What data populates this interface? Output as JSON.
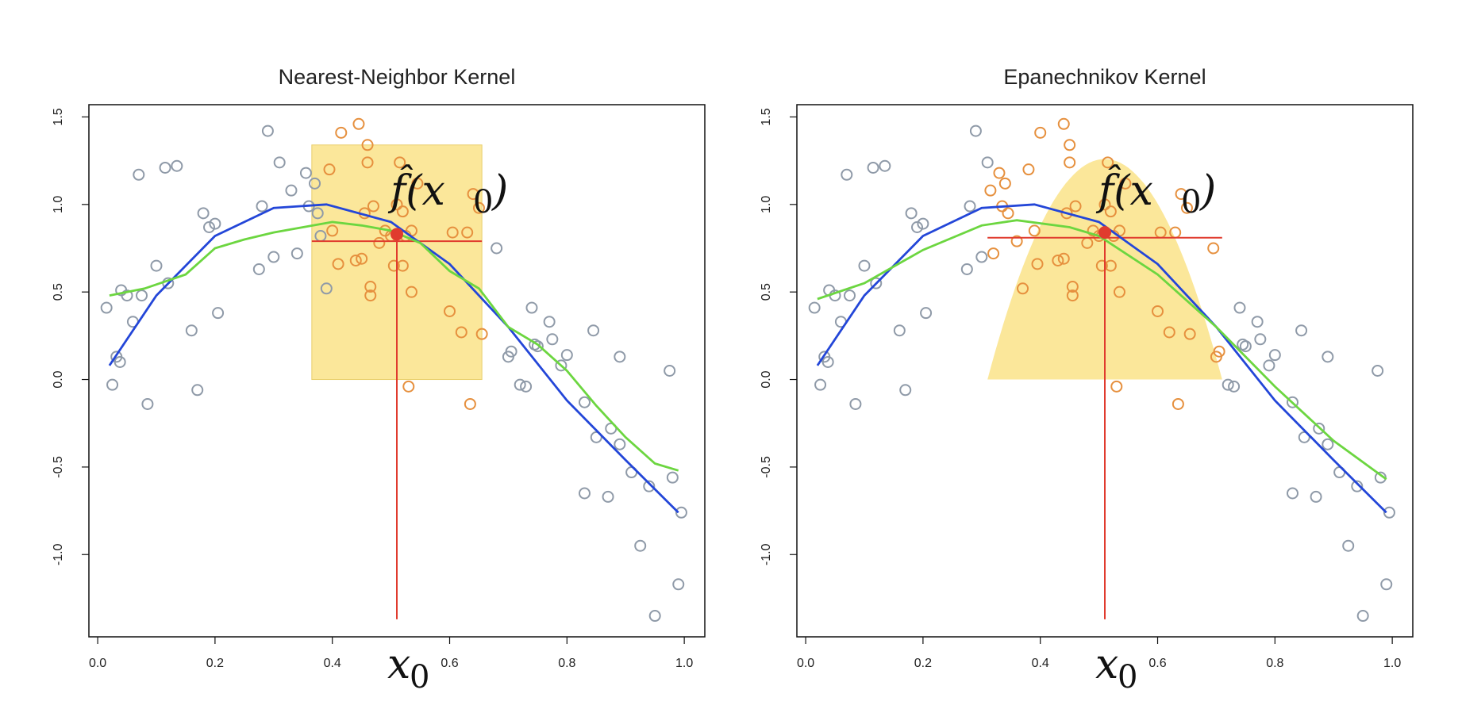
{
  "chart_data": [
    {
      "type": "scatter",
      "title": "Nearest-Neighbor Kernel",
      "kernel": "nearest-neighbor",
      "xlim": [
        -0.015,
        1.035
      ],
      "ylim": [
        -1.47,
        1.57
      ],
      "xticks": [
        0.0,
        0.2,
        0.4,
        0.6,
        0.8,
        1.0
      ],
      "xtick_labels": [
        "0.0",
        "0.2",
        "0.4",
        "0.6",
        "0.8",
        "1.0"
      ],
      "yticks": [
        -1.0,
        -0.5,
        0.0,
        0.5,
        1.0,
        1.5
      ],
      "ytick_labels": [
        "-1.0",
        "-0.5",
        "0.0",
        "0.5",
        "1.0",
        "1.5"
      ],
      "x0": 0.51,
      "fhat_x0": 0.83,
      "x0_label": "x",
      "x0_sub": "0",
      "fhat_label": "f̂(x",
      "fhat_sub": "0",
      "fhat_close": ")",
      "kernel_window": {
        "shape": "rectangle",
        "x": [
          0.365,
          0.655
        ],
        "height": 1.34
      },
      "estimate_line": {
        "x": [
          0.365,
          0.655
        ],
        "y": 0.79
      },
      "true_curve": {
        "name": "",
        "color": "#2346d8",
        "x": [
          0.02,
          0.1,
          0.2,
          0.3,
          0.39,
          0.5,
          0.6,
          0.7,
          0.8,
          0.9,
          0.99
        ],
        "y": [
          0.08,
          0.48,
          0.82,
          0.98,
          1.0,
          0.9,
          0.66,
          0.3,
          -0.12,
          -0.46,
          -0.76
        ]
      },
      "fit_curve": {
        "name": "",
        "color": "#6cd640",
        "x": [
          0.02,
          0.08,
          0.15,
          0.2,
          0.25,
          0.3,
          0.35,
          0.4,
          0.45,
          0.5,
          0.55,
          0.6,
          0.65,
          0.7,
          0.75,
          0.8,
          0.85,
          0.9,
          0.95,
          0.99
        ],
        "y": [
          0.48,
          0.52,
          0.6,
          0.75,
          0.8,
          0.84,
          0.87,
          0.9,
          0.88,
          0.85,
          0.78,
          0.62,
          0.52,
          0.3,
          0.2,
          0.05,
          -0.15,
          -0.33,
          -0.48,
          -0.52
        ]
      },
      "points_color": "#8f9aa8",
      "points_in_window_color": "#e6903e",
      "fhat_color": "#e03b2e",
      "window_color": "#fbe79a",
      "points": [
        [
          0.015,
          0.41
        ],
        [
          0.025,
          -0.03
        ],
        [
          0.032,
          0.13
        ],
        [
          0.038,
          0.1
        ],
        [
          0.04,
          0.51
        ],
        [
          0.05,
          0.48
        ],
        [
          0.06,
          0.33
        ],
        [
          0.07,
          1.17
        ],
        [
          0.075,
          0.48
        ],
        [
          0.085,
          -0.14
        ],
        [
          0.1,
          0.65
        ],
        [
          0.115,
          1.21
        ],
        [
          0.12,
          0.55
        ],
        [
          0.135,
          1.22
        ],
        [
          0.16,
          0.28
        ],
        [
          0.17,
          -0.06
        ],
        [
          0.18,
          0.95
        ],
        [
          0.19,
          0.87
        ],
        [
          0.2,
          0.89
        ],
        [
          0.205,
          0.38
        ],
        [
          0.275,
          0.63
        ],
        [
          0.28,
          0.99
        ],
        [
          0.29,
          1.42
        ],
        [
          0.3,
          0.7
        ],
        [
          0.31,
          1.24
        ],
        [
          0.33,
          1.08
        ],
        [
          0.34,
          0.72
        ],
        [
          0.355,
          1.18
        ],
        [
          0.36,
          0.99
        ],
        [
          0.37,
          1.12
        ],
        [
          0.375,
          0.95
        ],
        [
          0.38,
          0.82
        ],
        [
          0.39,
          0.52
        ],
        [
          0.68,
          0.75
        ],
        [
          0.7,
          0.13
        ],
        [
          0.705,
          0.16
        ],
        [
          0.72,
          -0.03
        ],
        [
          0.73,
          -0.04
        ],
        [
          0.74,
          0.41
        ],
        [
          0.745,
          0.2
        ],
        [
          0.75,
          0.19
        ],
        [
          0.77,
          0.33
        ],
        [
          0.775,
          0.23
        ],
        [
          0.79,
          0.08
        ],
        [
          0.8,
          0.14
        ],
        [
          0.83,
          -0.13
        ],
        [
          0.83,
          -0.65
        ],
        [
          0.845,
          0.28
        ],
        [
          0.85,
          -0.33
        ],
        [
          0.87,
          -0.67
        ],
        [
          0.875,
          -0.28
        ],
        [
          0.89,
          0.13
        ],
        [
          0.89,
          -0.37
        ],
        [
          0.91,
          -0.53
        ],
        [
          0.925,
          -0.95
        ],
        [
          0.94,
          -0.61
        ],
        [
          0.95,
          -1.35
        ],
        [
          0.975,
          0.05
        ],
        [
          0.98,
          -0.56
        ],
        [
          0.99,
          -1.17
        ],
        [
          0.995,
          -0.76
        ]
      ],
      "points_in_window": [
        [
          0.395,
          1.2
        ],
        [
          0.4,
          0.85
        ],
        [
          0.41,
          0.66
        ],
        [
          0.415,
          1.41
        ],
        [
          0.44,
          0.68
        ],
        [
          0.445,
          1.46
        ],
        [
          0.45,
          0.69
        ],
        [
          0.455,
          0.95
        ],
        [
          0.46,
          1.34
        ],
        [
          0.46,
          1.24
        ],
        [
          0.465,
          0.53
        ],
        [
          0.465,
          0.48
        ],
        [
          0.47,
          0.99
        ],
        [
          0.48,
          0.78
        ],
        [
          0.49,
          0.85
        ],
        [
          0.5,
          0.82
        ],
        [
          0.505,
          0.65
        ],
        [
          0.51,
          1.0
        ],
        [
          0.515,
          1.24
        ],
        [
          0.52,
          0.65
        ],
        [
          0.52,
          0.96
        ],
        [
          0.525,
          0.82
        ],
        [
          0.53,
          -0.04
        ],
        [
          0.535,
          0.85
        ],
        [
          0.535,
          0.5
        ],
        [
          0.545,
          1.12
        ],
        [
          0.6,
          0.39
        ],
        [
          0.605,
          0.84
        ],
        [
          0.62,
          0.27
        ],
        [
          0.63,
          0.84
        ],
        [
          0.635,
          -0.14
        ],
        [
          0.64,
          1.06
        ],
        [
          0.65,
          0.98
        ],
        [
          0.655,
          0.26
        ]
      ]
    },
    {
      "type": "scatter",
      "title": "Epanechnikov Kernel",
      "kernel": "epanechnikov",
      "xlim": [
        -0.015,
        1.035
      ],
      "ylim": [
        -1.47,
        1.57
      ],
      "xticks": [
        0.0,
        0.2,
        0.4,
        0.6,
        0.8,
        1.0
      ],
      "xtick_labels": [
        "0.0",
        "0.2",
        "0.4",
        "0.6",
        "0.8",
        "1.0"
      ],
      "yticks": [
        -1.0,
        -0.5,
        0.0,
        0.5,
        1.0,
        1.5
      ],
      "ytick_labels": [
        "-1.0",
        "-0.5",
        "0.0",
        "0.5",
        "1.0",
        "1.5"
      ],
      "x0": 0.51,
      "fhat_x0": 0.84,
      "x0_label": "x",
      "x0_sub": "0",
      "fhat_label": "f̂(x",
      "fhat_sub": "0",
      "fhat_close": ")",
      "kernel_window": {
        "shape": "epanechnikov",
        "x": [
          0.31,
          0.71
        ],
        "height": 1.26
      },
      "estimate_line": {
        "x": [
          0.31,
          0.71
        ],
        "y": 0.81
      },
      "true_curve": {
        "name": "",
        "color": "#2346d8",
        "x": [
          0.02,
          0.1,
          0.2,
          0.3,
          0.39,
          0.5,
          0.6,
          0.7,
          0.8,
          0.9,
          0.99
        ],
        "y": [
          0.08,
          0.48,
          0.82,
          0.98,
          1.0,
          0.9,
          0.66,
          0.3,
          -0.12,
          -0.46,
          -0.76
        ]
      },
      "fit_curve": {
        "name": "",
        "color": "#6cd640",
        "x": [
          0.02,
          0.1,
          0.2,
          0.3,
          0.36,
          0.45,
          0.5,
          0.6,
          0.7,
          0.8,
          0.9,
          0.99
        ],
        "y": [
          0.46,
          0.55,
          0.74,
          0.88,
          0.91,
          0.87,
          0.82,
          0.6,
          0.3,
          -0.04,
          -0.35,
          -0.57
        ]
      },
      "points_color": "#8f9aa8",
      "points_in_window_color": "#e6903e",
      "fhat_color": "#e03b2e",
      "window_color": "#fbe79a",
      "points": [
        [
          0.015,
          0.41
        ],
        [
          0.025,
          -0.03
        ],
        [
          0.032,
          0.13
        ],
        [
          0.038,
          0.1
        ],
        [
          0.04,
          0.51
        ],
        [
          0.05,
          0.48
        ],
        [
          0.06,
          0.33
        ],
        [
          0.07,
          1.17
        ],
        [
          0.075,
          0.48
        ],
        [
          0.085,
          -0.14
        ],
        [
          0.1,
          0.65
        ],
        [
          0.115,
          1.21
        ],
        [
          0.12,
          0.55
        ],
        [
          0.135,
          1.22
        ],
        [
          0.16,
          0.28
        ],
        [
          0.17,
          -0.06
        ],
        [
          0.18,
          0.95
        ],
        [
          0.19,
          0.87
        ],
        [
          0.2,
          0.89
        ],
        [
          0.205,
          0.38
        ],
        [
          0.275,
          0.63
        ],
        [
          0.28,
          0.99
        ],
        [
          0.29,
          1.42
        ],
        [
          0.3,
          0.7
        ],
        [
          0.31,
          1.24
        ],
        [
          0.72,
          -0.03
        ],
        [
          0.73,
          -0.04
        ],
        [
          0.74,
          0.41
        ],
        [
          0.745,
          0.2
        ],
        [
          0.75,
          0.19
        ],
        [
          0.77,
          0.33
        ],
        [
          0.775,
          0.23
        ],
        [
          0.79,
          0.08
        ],
        [
          0.8,
          0.14
        ],
        [
          0.83,
          -0.13
        ],
        [
          0.83,
          -0.65
        ],
        [
          0.845,
          0.28
        ],
        [
          0.85,
          -0.33
        ],
        [
          0.87,
          -0.67
        ],
        [
          0.875,
          -0.28
        ],
        [
          0.89,
          0.13
        ],
        [
          0.89,
          -0.37
        ],
        [
          0.91,
          -0.53
        ],
        [
          0.925,
          -0.95
        ],
        [
          0.94,
          -0.61
        ],
        [
          0.95,
          -1.35
        ],
        [
          0.975,
          0.05
        ],
        [
          0.98,
          -0.56
        ],
        [
          0.99,
          -1.17
        ],
        [
          0.995,
          -0.76
        ]
      ],
      "points_in_window": [
        [
          0.315,
          1.08
        ],
        [
          0.32,
          0.72
        ],
        [
          0.33,
          1.18
        ],
        [
          0.335,
          0.99
        ],
        [
          0.34,
          1.12
        ],
        [
          0.345,
          0.95
        ],
        [
          0.36,
          0.79
        ],
        [
          0.37,
          0.52
        ],
        [
          0.38,
          1.2
        ],
        [
          0.39,
          0.85
        ],
        [
          0.395,
          0.66
        ],
        [
          0.4,
          1.41
        ],
        [
          0.43,
          0.68
        ],
        [
          0.44,
          1.46
        ],
        [
          0.44,
          0.69
        ],
        [
          0.445,
          0.95
        ],
        [
          0.45,
          1.34
        ],
        [
          0.45,
          1.24
        ],
        [
          0.455,
          0.53
        ],
        [
          0.455,
          0.48
        ],
        [
          0.46,
          0.99
        ],
        [
          0.48,
          0.78
        ],
        [
          0.49,
          0.85
        ],
        [
          0.5,
          0.82
        ],
        [
          0.505,
          0.65
        ],
        [
          0.51,
          1.0
        ],
        [
          0.515,
          1.24
        ],
        [
          0.52,
          0.65
        ],
        [
          0.52,
          0.96
        ],
        [
          0.525,
          0.82
        ],
        [
          0.53,
          -0.04
        ],
        [
          0.535,
          0.85
        ],
        [
          0.535,
          0.5
        ],
        [
          0.545,
          1.12
        ],
        [
          0.6,
          0.39
        ],
        [
          0.605,
          0.84
        ],
        [
          0.62,
          0.27
        ],
        [
          0.63,
          0.84
        ],
        [
          0.635,
          -0.14
        ],
        [
          0.64,
          1.06
        ],
        [
          0.65,
          0.98
        ],
        [
          0.655,
          0.26
        ],
        [
          0.695,
          0.75
        ],
        [
          0.7,
          0.13
        ],
        [
          0.705,
          0.16
        ]
      ]
    }
  ]
}
